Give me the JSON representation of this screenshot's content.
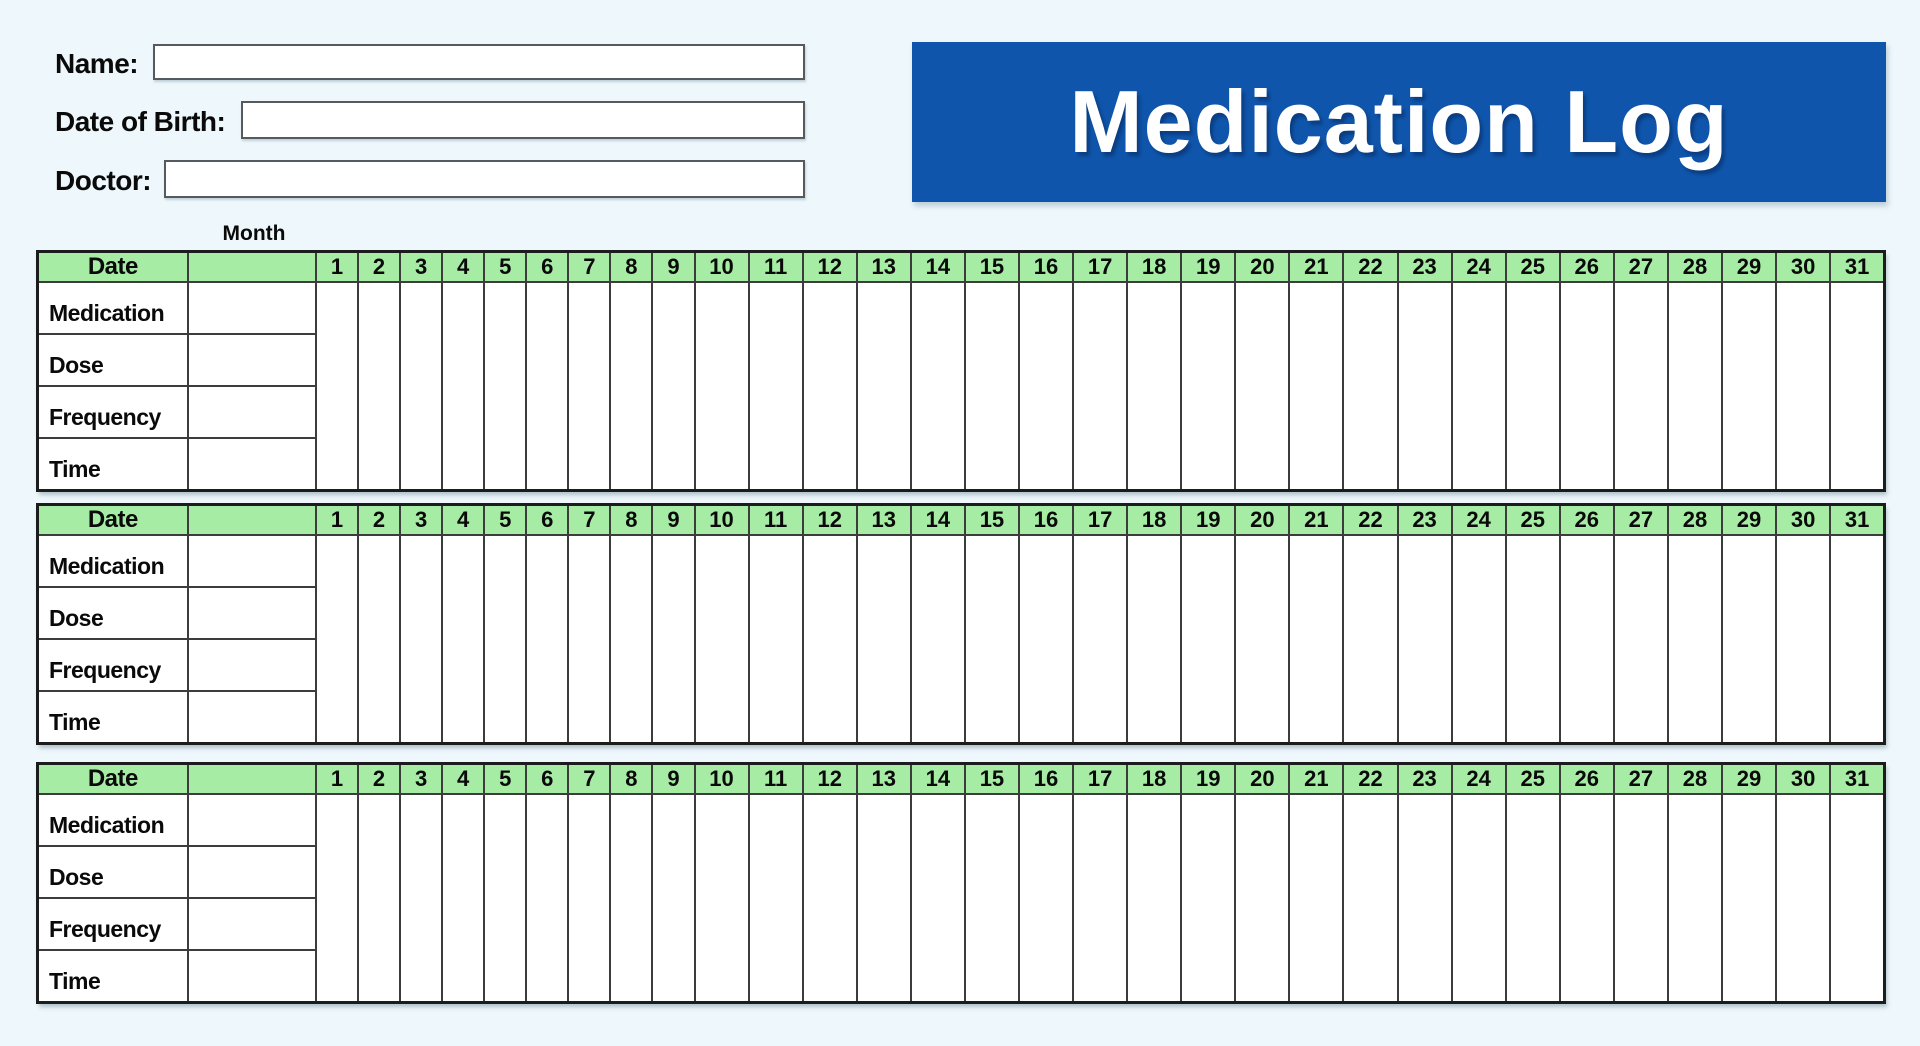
{
  "colors": {
    "page_background": "#eef7fb",
    "banner_background": "#0f55ab",
    "banner_text": "#ffffff",
    "table_header_background": "#a7eca5"
  },
  "patient_form": {
    "fields": [
      {
        "id": "name",
        "label": "Name:",
        "value": ""
      },
      {
        "id": "dob",
        "label": "Date of Birth:",
        "value": ""
      },
      {
        "id": "doctor",
        "label": "Doctor:",
        "value": ""
      }
    ]
  },
  "banner": {
    "title": "Medication Log"
  },
  "month_label": "Month",
  "day_numbers": [
    1,
    2,
    3,
    4,
    5,
    6,
    7,
    8,
    9,
    10,
    11,
    12,
    13,
    14,
    15,
    16,
    17,
    18,
    19,
    20,
    21,
    22,
    23,
    24,
    25,
    26,
    27,
    28,
    29,
    30,
    31
  ],
  "log_sections": [
    {
      "header_label": "Date",
      "month_value": "",
      "row_labels": [
        "Medication",
        "Dose",
        "Frequency",
        "Time"
      ],
      "row_values": [
        "",
        "",
        "",
        ""
      ]
    },
    {
      "header_label": "Date",
      "month_value": "",
      "row_labels": [
        "Medication",
        "Dose",
        "Frequency",
        "Time"
      ],
      "row_values": [
        "",
        "",
        "",
        ""
      ]
    },
    {
      "header_label": "Date",
      "month_value": "",
      "row_labels": [
        "Medication",
        "Dose",
        "Frequency",
        "Time"
      ],
      "row_values": [
        "",
        "",
        "",
        ""
      ]
    }
  ]
}
